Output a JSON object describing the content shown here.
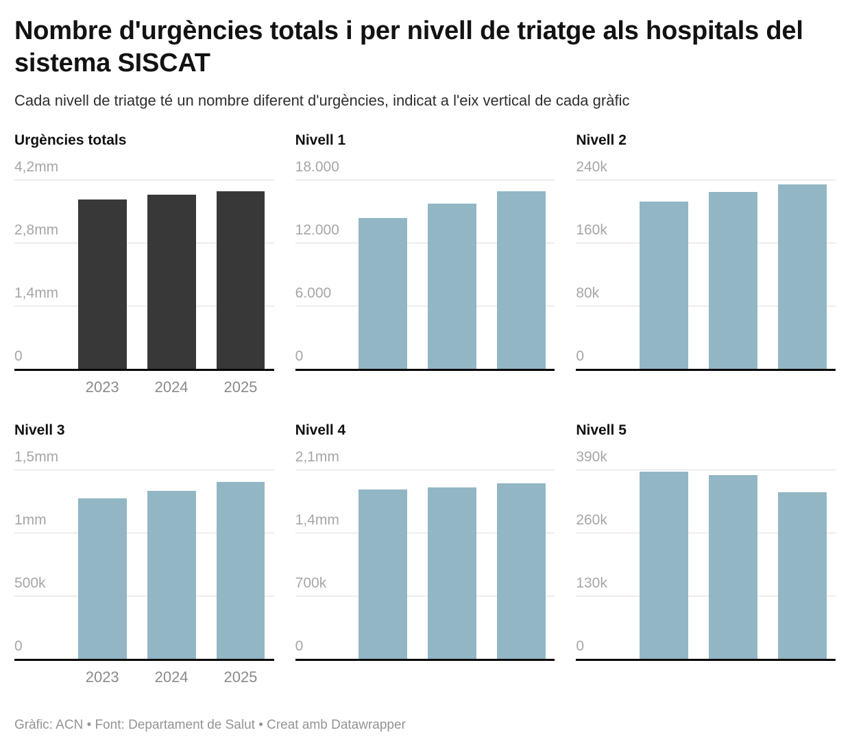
{
  "page": {
    "title": "Nombre d'urgències totals i per nivell de triatge als hospitals del sistema SISCAT",
    "subtitle": "Cada nivell de triatge té un nombre diferent d'urgències, indicat a l'eix vertical de cada gràfic",
    "footer": "Gràfic: ACN • Font: Departament de Salut • Creat amb Datawrapper"
  },
  "colors": {
    "dark_bar": "#383838",
    "blue_bar": "#92b6c4",
    "gridline": "#dddddd",
    "axis_line": "#000000",
    "tick_label": "#a6a6a6",
    "year_label": "#8a8a8a",
    "footer_text": "#949494"
  },
  "chart_data": [
    {
      "type": "bar",
      "title": "Urgències totals",
      "categories": [
        "2023",
        "2024",
        "2025"
      ],
      "values": [
        3760000,
        3870000,
        3940000
      ],
      "ylim": [
        0,
        4200000
      ],
      "ytick_labels_top_to_bottom": [
        "4,2mm",
        "2,8mm",
        "1,4mm",
        "0"
      ],
      "bar_color": "#383838",
      "show_x_labels": true,
      "grid": true,
      "legend": "none"
    },
    {
      "type": "bar",
      "title": "Nivell 1",
      "categories": [
        "2023",
        "2024",
        "2025"
      ],
      "values": [
        14340,
        15750,
        16900
      ],
      "ylim": [
        0,
        18000
      ],
      "ytick_labels_top_to_bottom": [
        "18.000",
        "12.000",
        "6.000",
        "0"
      ],
      "bar_color": "#92b6c4",
      "show_x_labels": false,
      "grid": true,
      "legend": "none"
    },
    {
      "type": "bar",
      "title": "Nivell 2",
      "categories": [
        "2023",
        "2024",
        "2025"
      ],
      "values": [
        212000,
        224000,
        234000
      ],
      "ylim": [
        0,
        240000
      ],
      "ytick_labels_top_to_bottom": [
        "240k",
        "160k",
        "80k",
        "0"
      ],
      "bar_color": "#92b6c4",
      "show_x_labels": false,
      "grid": true,
      "legend": "none"
    },
    {
      "type": "bar",
      "title": "Nivell 3",
      "categories": [
        "2023",
        "2024",
        "2025"
      ],
      "values": [
        1270000,
        1330000,
        1400000
      ],
      "ylim": [
        0,
        1500000
      ],
      "ytick_labels_top_to_bottom": [
        "1,5mm",
        "1mm",
        "500k",
        "0"
      ],
      "bar_color": "#92b6c4",
      "show_x_labels": true,
      "grid": true,
      "legend": "none"
    },
    {
      "type": "bar",
      "title": "Nivell 4",
      "categories": [
        "2023",
        "2024",
        "2025"
      ],
      "values": [
        1880000,
        1900000,
        1950000
      ],
      "ylim": [
        0,
        2100000
      ],
      "ytick_labels_top_to_bottom": [
        "2,1mm",
        "1,4mm",
        "700k",
        "0"
      ],
      "bar_color": "#92b6c4",
      "show_x_labels": false,
      "grid": true,
      "legend": "none"
    },
    {
      "type": "bar",
      "title": "Nivell 5",
      "categories": [
        "2023",
        "2024",
        "2025"
      ],
      "values": [
        386000,
        379000,
        343000
      ],
      "ylim": [
        0,
        390000
      ],
      "ytick_labels_top_to_bottom": [
        "390k",
        "260k",
        "130k",
        "0"
      ],
      "bar_color": "#92b6c4",
      "show_x_labels": false,
      "grid": true,
      "legend": "none"
    }
  ]
}
